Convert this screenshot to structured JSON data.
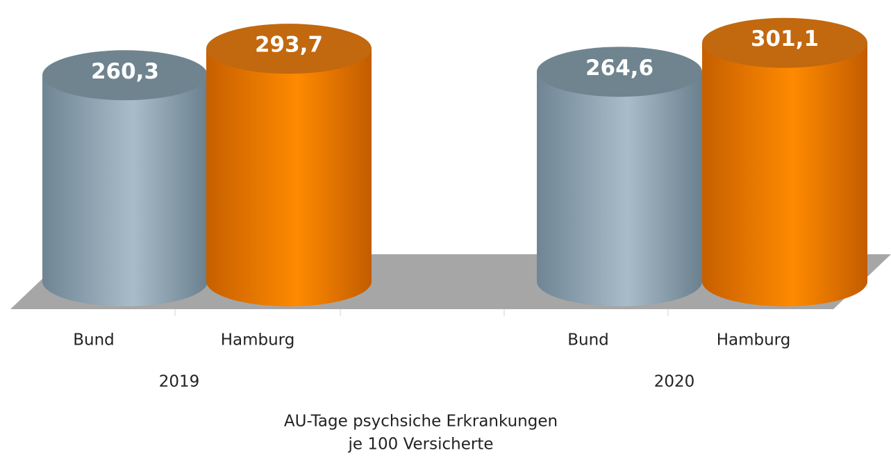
{
  "chart_data": {
    "type": "bar",
    "categories": [
      "Bund",
      "Hamburg",
      "Bund",
      "Hamburg"
    ],
    "groups": [
      "2019",
      "2020"
    ],
    "values": [
      260.3,
      293.7,
      264.6,
      301.1
    ],
    "value_labels": [
      "260,3",
      "293,7",
      "264,6",
      "301,1"
    ],
    "colors": [
      "#9fb3c0",
      "#ff8400",
      "#9fb3c0",
      "#ff8400"
    ],
    "ylim": [
      0,
      300
    ],
    "xlabel": [
      "AU-Tage psychsiche Erkrankungen",
      "je 100 Versicherte"
    ]
  }
}
